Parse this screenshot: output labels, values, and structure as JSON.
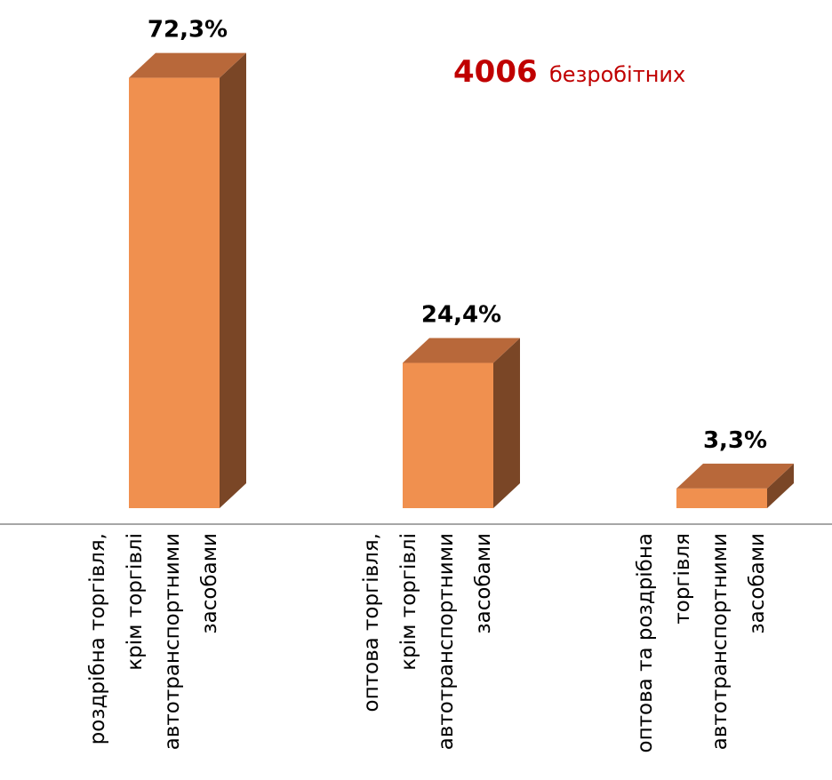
{
  "chart_data": {
    "type": "bar3d",
    "annotation": {
      "number": "4006",
      "text": "безробітних"
    },
    "categories": [
      [
        "роздрібна торгівля,",
        "крім торгівлі",
        "автотранспортними",
        "засобами"
      ],
      [
        "оптова торгівля,",
        "крім торгівлі",
        "автотранспортними",
        "засобами"
      ],
      [
        "оптова та роздрібна",
        "торгівля",
        "автотранспортними",
        "засобами"
      ]
    ],
    "values": [
      72.3,
      24.4,
      3.3
    ],
    "value_labels": [
      "72,3%",
      "24,4%",
      "3,3%"
    ],
    "color": "#f0904f",
    "ylim": [
      0,
      80
    ]
  }
}
